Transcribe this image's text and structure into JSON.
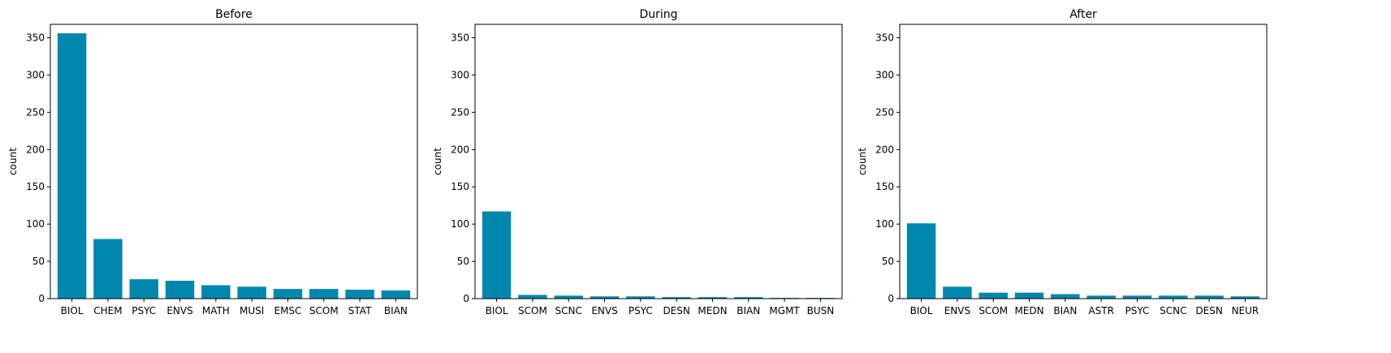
{
  "colors": {
    "bar": "#0087ae",
    "axis": "#000000",
    "background": "#ffffff"
  },
  "chart_data": [
    {
      "type": "bar",
      "title": "Before",
      "xlabel": "",
      "ylabel": "count",
      "ylim": [
        0,
        368
      ],
      "yticks": [
        0,
        50,
        100,
        150,
        200,
        250,
        300,
        350
      ],
      "grid": false,
      "categories": [
        "BIOL",
        "CHEM",
        "PSYC",
        "ENVS",
        "MATH",
        "MUSI",
        "EMSC",
        "SCOM",
        "STAT",
        "BIAN"
      ],
      "values": [
        356,
        80,
        26,
        24,
        18,
        16,
        13,
        13,
        12,
        11
      ]
    },
    {
      "type": "bar",
      "title": "During",
      "xlabel": "",
      "ylabel": "count",
      "ylim": [
        0,
        368
      ],
      "yticks": [
        0,
        50,
        100,
        150,
        200,
        250,
        300,
        350
      ],
      "grid": false,
      "categories": [
        "BIOL",
        "SCOM",
        "SCNC",
        "ENVS",
        "PSYC",
        "DESN",
        "MEDN",
        "BIAN",
        "MGMT",
        "BUSN"
      ],
      "values": [
        117,
        5,
        4,
        3,
        3,
        2,
        2,
        2,
        1,
        1
      ]
    },
    {
      "type": "bar",
      "title": "After",
      "xlabel": "",
      "ylabel": "count",
      "ylim": [
        0,
        368
      ],
      "yticks": [
        0,
        50,
        100,
        150,
        200,
        250,
        300,
        350
      ],
      "grid": false,
      "categories": [
        "BIOL",
        "ENVS",
        "SCOM",
        "MEDN",
        "BIAN",
        "ASTR",
        "PSYC",
        "SCNC",
        "DESN",
        "NEUR"
      ],
      "values": [
        101,
        16,
        8,
        8,
        6,
        4,
        4,
        4,
        4,
        3
      ]
    }
  ]
}
